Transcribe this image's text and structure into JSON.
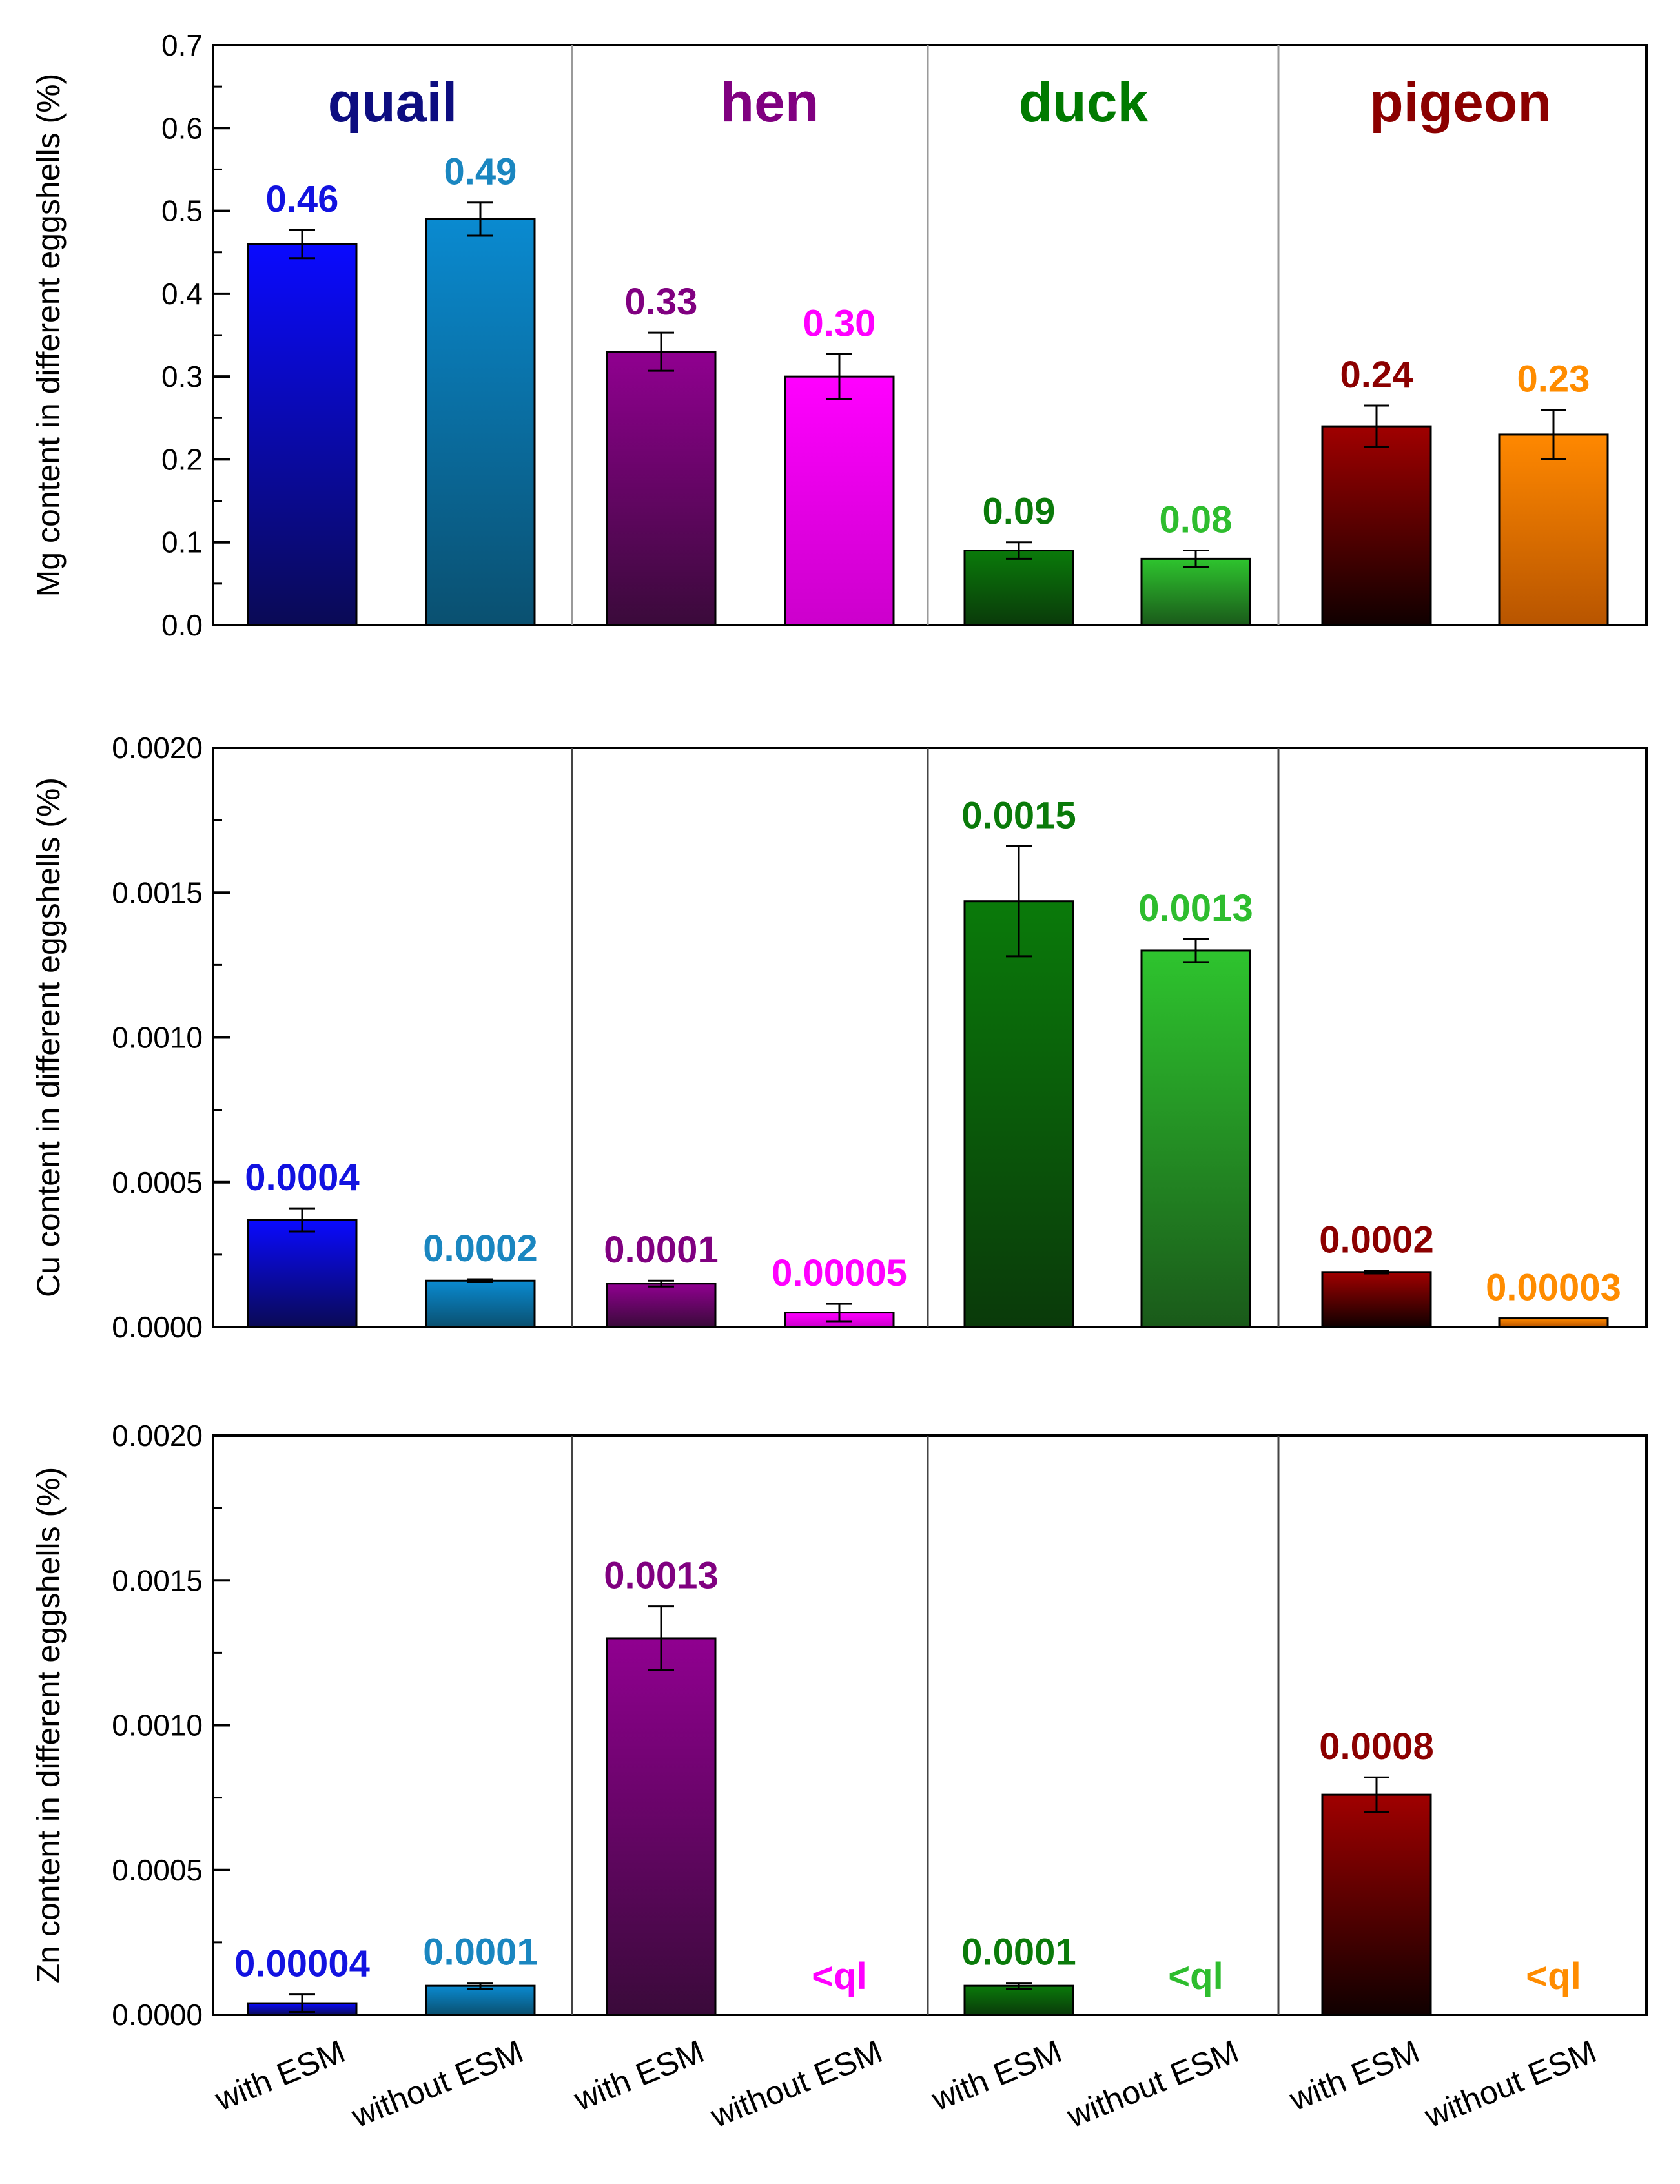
{
  "chart_data": [
    {
      "type": "bar",
      "ylabel": "Mg content in different eggshells (%)",
      "ylim": [
        0,
        0.7
      ],
      "yticks": [
        "0.0",
        "0.1",
        "0.2",
        "0.3",
        "0.4",
        "0.5",
        "0.6",
        "0.7"
      ],
      "groups": [
        "quail",
        "hen",
        "duck",
        "pigeon"
      ],
      "categories": [
        "with ESM",
        "without ESM"
      ],
      "values": [
        0.46,
        0.49,
        0.33,
        0.3,
        0.09,
        0.08,
        0.24,
        0.23
      ],
      "errors": [
        0.017,
        0.02,
        0.023,
        0.027,
        0.01,
        0.01,
        0.025,
        0.03
      ],
      "labels": [
        "0.46",
        "0.49",
        "0.33",
        "0.30",
        "0.09",
        "0.08",
        "0.24",
        "0.23"
      ]
    },
    {
      "type": "bar",
      "ylabel": "Cu content in different eggshells (%)",
      "ylim": [
        0,
        0.002
      ],
      "yticks": [
        "0.0000",
        "0.0005",
        "0.0010",
        "0.0015",
        "0.0020"
      ],
      "groups": [
        "quail",
        "hen",
        "duck",
        "pigeon"
      ],
      "categories": [
        "with ESM",
        "without ESM"
      ],
      "values": [
        0.00037,
        0.00016,
        0.00015,
        5e-05,
        0.00147,
        0.0013,
        0.00019,
        3e-05
      ],
      "errors": [
        4e-05,
        5e-06,
        1e-05,
        3e-05,
        0.00019,
        4e-05,
        5e-06,
        0
      ],
      "labels": [
        "0.0004",
        "0.0002",
        "0.0001",
        "0.00005",
        "0.0015",
        "0.0013",
        "0.0002",
        "0.00003"
      ]
    },
    {
      "type": "bar",
      "ylabel": "Zn content in different eggshells (%)",
      "ylim": [
        0,
        0.002
      ],
      "yticks": [
        "0.0000",
        "0.0005",
        "0.0010",
        "0.0015",
        "0.0020"
      ],
      "groups": [
        "quail",
        "hen",
        "duck",
        "pigeon"
      ],
      "categories": [
        "with ESM",
        "without ESM"
      ],
      "values": [
        4e-05,
        0.0001,
        0.0013,
        null,
        0.0001,
        null,
        0.00076,
        null
      ],
      "errors": [
        3e-05,
        1e-05,
        0.00011,
        0,
        1e-05,
        0,
        6e-05,
        0
      ],
      "labels": [
        "0.00004",
        "0.0001",
        "0.0013",
        "<ql",
        "0.0001",
        "<ql",
        "0.0008",
        "<ql"
      ]
    }
  ],
  "group_colors": [
    "#0d0d80",
    "#800080",
    "#007a00",
    "#8b0000"
  ],
  "label_colors": [
    "#1212e0",
    "#1a86c0",
    "#800080",
    "#ff00ff",
    "#0a7a0a",
    "#2ebd2e",
    "#8b0000",
    "#ff8c00"
  ],
  "bar_gradients": [
    [
      "#0a0aff",
      "#0a0a55"
    ],
    [
      "#0a8ad0",
      "#0a5070"
    ],
    [
      "#900090",
      "#3a0a3a"
    ],
    [
      "#ff00ff",
      "#cc00cc"
    ],
    [
      "#0a7a0a",
      "#0a3a0a"
    ],
    [
      "#2ec42e",
      "#1a5a1a"
    ],
    [
      "#a00000",
      "#100000"
    ],
    [
      "#ff8800",
      "#b85500"
    ]
  ]
}
